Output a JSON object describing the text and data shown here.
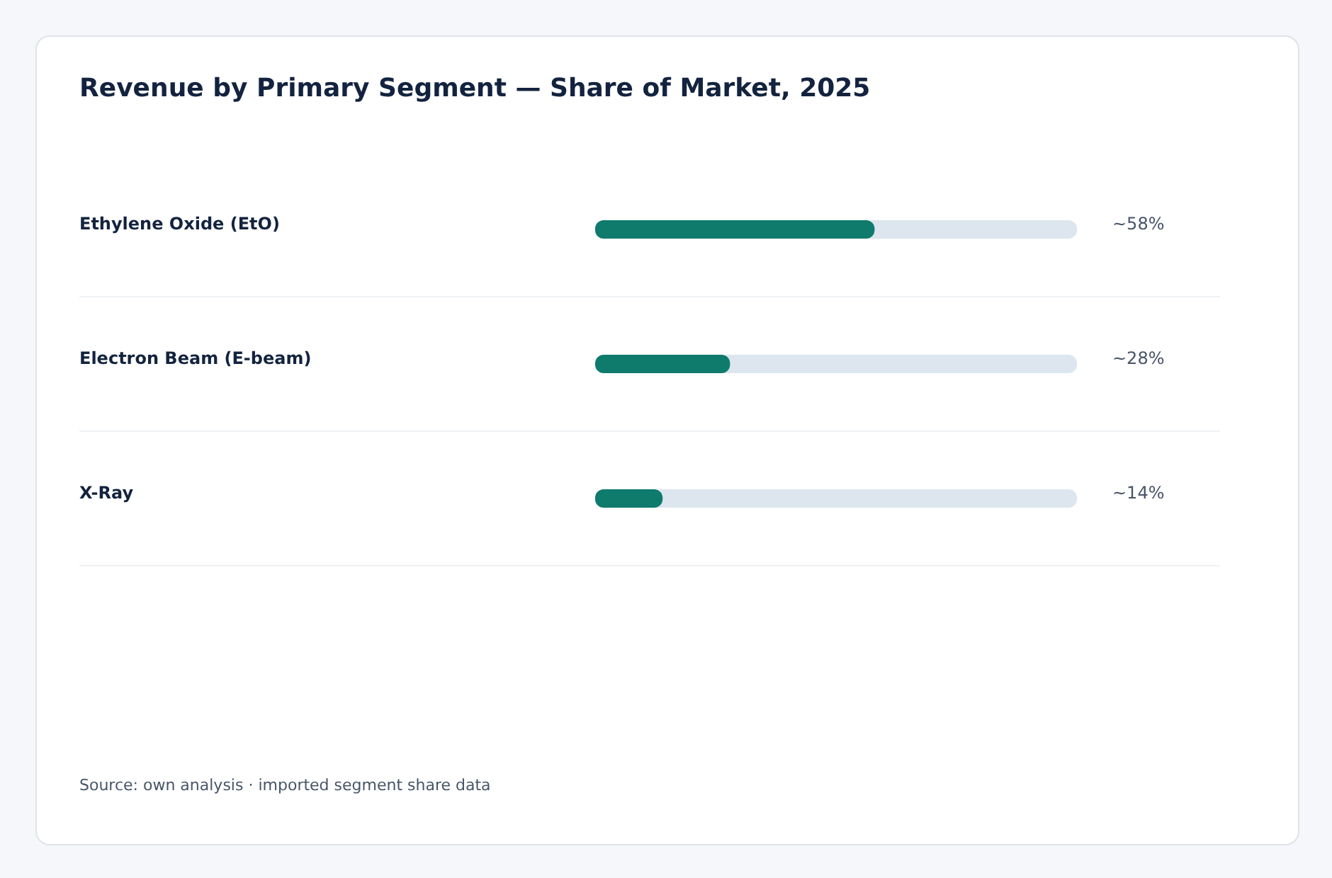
{
  "chart_data": {
    "type": "bar",
    "orientation": "horizontal",
    "title": "Revenue by Primary Segment — Share of Market, 2025",
    "categories": [
      "Ethylene Oxide (EtO)",
      "Electron Beam (E-beam)",
      "X-Ray"
    ],
    "values": [
      58,
      28,
      14
    ],
    "value_labels": [
      "~58%",
      "~28%",
      "~14%"
    ],
    "color": "#0f7b6c",
    "xlim": [
      0,
      100
    ],
    "annotations": [
      "Source: own analysis · imported segment share data"
    ]
  }
}
